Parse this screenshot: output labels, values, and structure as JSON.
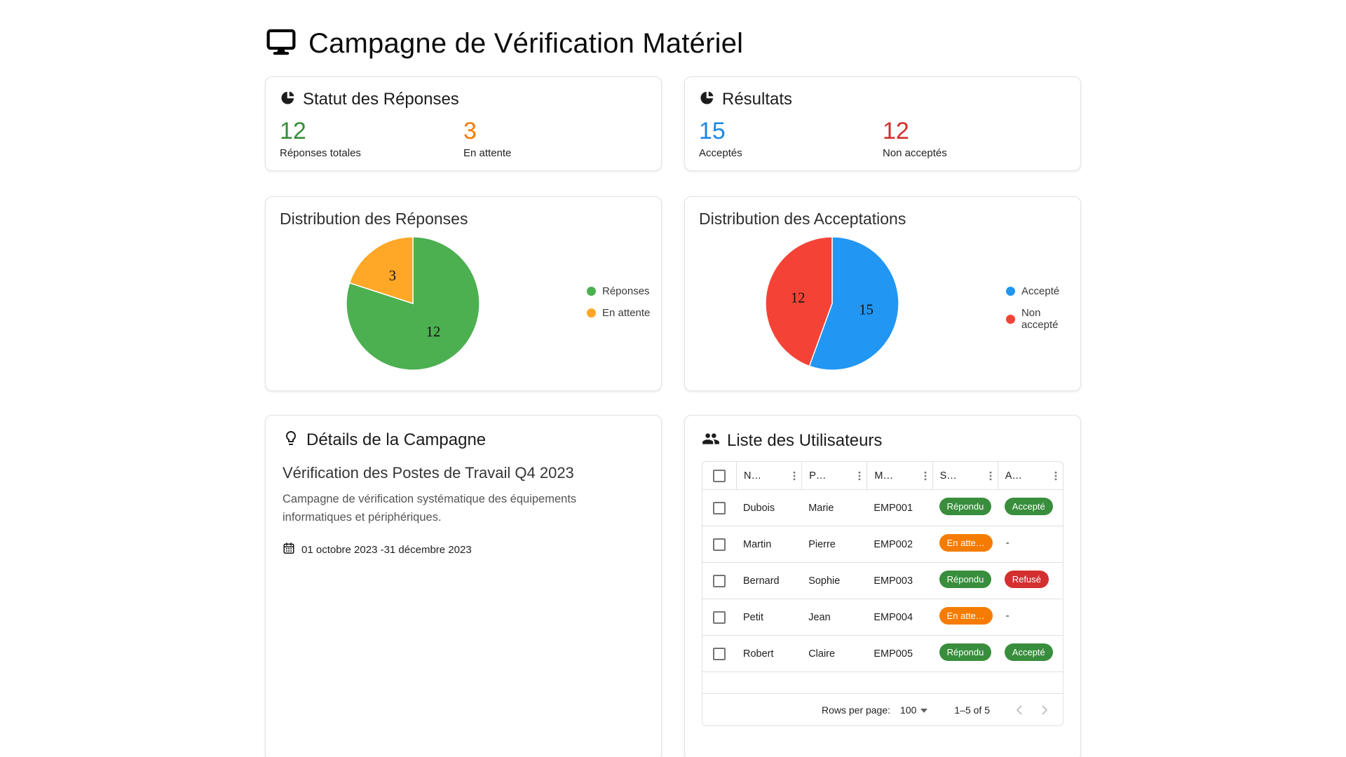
{
  "page_title": "Campagne de Vérification Matériel",
  "stats_cards": [
    {
      "title": "Statut des Réponses",
      "items": [
        {
          "value": "12",
          "label": "Réponses totales",
          "color": "#388e3c"
        },
        {
          "value": "3",
          "label": "En attente",
          "color": "#f57c00"
        }
      ]
    },
    {
      "title": "Résultats",
      "items": [
        {
          "value": "15",
          "label": "Acceptés",
          "color": "#1e88e5"
        },
        {
          "value": "12",
          "label": "Non acceptés",
          "color": "#d32f2f"
        }
      ]
    }
  ],
  "chart_data": [
    {
      "type": "pie",
      "title": "Distribution des Réponses",
      "labels": [
        "Réponses",
        "En attente"
      ],
      "values": [
        12,
        3
      ],
      "colors": [
        "#4caf50",
        "#ffa726"
      ],
      "legend_position": "right",
      "start_angle_deg": 0,
      "direction": "clockwise"
    },
    {
      "type": "pie",
      "title": "Distribution des Acceptations",
      "labels": [
        "Accepté",
        "Non accepté"
      ],
      "values": [
        15,
        12
      ],
      "colors": [
        "#2196f3",
        "#f44336"
      ],
      "legend_position": "right",
      "start_angle_deg": 0,
      "direction": "clockwise"
    }
  ],
  "details_card": {
    "title": "Détails de la Campagne",
    "campaign_name": "Vérification des Postes de Travail Q4 2023",
    "description": "Campagne de vérification systématique des équipements informatiques et périphériques.",
    "date_range": "01 octobre 2023 -31 décembre 2023"
  },
  "users_card": {
    "title": "Liste des Utilisateurs",
    "columns": [
      "N…",
      "P…",
      "M…",
      "S…",
      "A…"
    ],
    "rows": [
      {
        "nom": "Dubois",
        "prenom": "Marie",
        "matricule": "EMP001",
        "statut": {
          "label": "Répondu",
          "color": "#388e3c"
        },
        "acceptation": {
          "label": "Accepté",
          "color": "#388e3c"
        }
      },
      {
        "nom": "Martin",
        "prenom": "Pierre",
        "matricule": "EMP002",
        "statut": {
          "label": "En atte…",
          "color": "#f57c00"
        },
        "acceptation": {
          "label": "-",
          "color": ""
        }
      },
      {
        "nom": "Bernard",
        "prenom": "Sophie",
        "matricule": "EMP003",
        "statut": {
          "label": "Répondu",
          "color": "#388e3c"
        },
        "acceptation": {
          "label": "Refusé",
          "color": "#d32f2f"
        }
      },
      {
        "nom": "Petit",
        "prenom": "Jean",
        "matricule": "EMP004",
        "statut": {
          "label": "En atte…",
          "color": "#f57c00"
        },
        "acceptation": {
          "label": "-",
          "color": ""
        }
      },
      {
        "nom": "Robert",
        "prenom": "Claire",
        "matricule": "EMP005",
        "statut": {
          "label": "Répondu",
          "color": "#388e3c"
        },
        "acceptation": {
          "label": "Accepté",
          "color": "#388e3c"
        }
      }
    ],
    "pagination": {
      "rows_per_page_label": "Rows per page:",
      "rows_per_page_value": "100",
      "range_label": "1–5 of 5"
    }
  }
}
